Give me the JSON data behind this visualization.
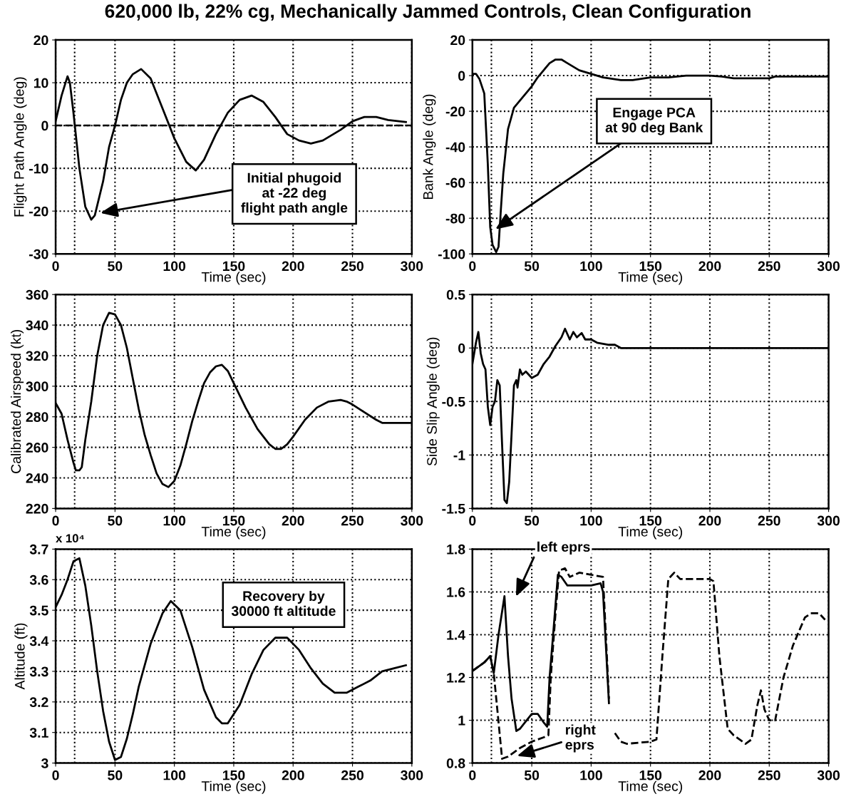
{
  "chart_data": [
    {
      "type": "line",
      "title": "620,000 lb, 22% cg, Mechanically Jammed Controls, Clean Configuration",
      "xlabel": "Time (sec)",
      "ylabel": "Flight Path Angle (deg)",
      "xlim": [
        0,
        300
      ],
      "ylim": [
        -30,
        20
      ],
      "xticks": [
        0,
        50,
        100,
        150,
        200,
        250,
        300
      ],
      "yticks": [
        -30,
        -20,
        -10,
        0,
        10,
        20
      ],
      "grid": true,
      "series": [
        {
          "color": "#000000",
          "line_style": "solid",
          "x": [
            0,
            5,
            10,
            12,
            15,
            20,
            25,
            30,
            33,
            40,
            45,
            50,
            55,
            60,
            65,
            72,
            80,
            90,
            100,
            110,
            118,
            125,
            135,
            145,
            155,
            165,
            175,
            185,
            195,
            205,
            215,
            225,
            240,
            250,
            260,
            270,
            280,
            295
          ],
          "values": [
            1,
            7,
            11.5,
            10,
            3,
            -10,
            -19,
            -22,
            -21,
            -13,
            -5,
            0,
            6,
            10,
            12,
            13.2,
            11,
            4,
            -3,
            -8.5,
            -10.5,
            -8,
            -2,
            3,
            6,
            7,
            5.5,
            2,
            -2,
            -3.5,
            -4.2,
            -3.5,
            -1,
            1,
            2,
            2,
            1.3,
            0.8
          ]
        }
      ],
      "ref_lines": [
        {
          "axis": "y",
          "value": 0,
          "line_style": "dashed",
          "color": "#000000"
        },
        {
          "axis": "x",
          "value": 16,
          "line_style": "dotted",
          "color": "#000000"
        }
      ],
      "annotations": [
        "Initial phugoid\nat -22 deg\nflight path angle"
      ]
    },
    {
      "type": "line",
      "xlabel": "Time (sec)",
      "ylabel": "Bank Angle (deg)",
      "xlim": [
        0,
        300
      ],
      "ylim": [
        -100,
        20
      ],
      "xticks": [
        0,
        50,
        100,
        150,
        200,
        250,
        300
      ],
      "yticks": [
        -100,
        -80,
        -60,
        -40,
        -20,
        0,
        20
      ],
      "grid": true,
      "series": [
        {
          "color": "#000000",
          "line_style": "solid",
          "x": [
            0,
            3,
            6,
            10,
            13,
            15,
            17,
            20,
            22,
            24,
            26,
            30,
            35,
            40,
            45,
            50,
            55,
            60,
            65,
            70,
            75,
            80,
            90,
            100,
            110,
            125,
            135,
            150,
            165,
            180,
            200,
            210,
            220,
            250,
            255,
            300
          ],
          "values": [
            1,
            1,
            -2,
            -10,
            -50,
            -85,
            -95,
            -99,
            -96,
            -75,
            -55,
            -30,
            -18,
            -14,
            -10,
            -6,
            -1,
            3,
            7,
            9,
            9,
            7,
            3,
            1,
            -1,
            -2.5,
            -2.5,
            -1,
            -1,
            0,
            0,
            -0.5,
            -1.5,
            -1.5,
            -0.5,
            -0.5
          ]
        }
      ],
      "ref_lines": [
        {
          "axis": "x",
          "value": 16,
          "line_style": "dotted",
          "color": "#000000"
        }
      ],
      "annotations": [
        "Engage PCA\nat 90 deg Bank"
      ]
    },
    {
      "type": "line",
      "xlabel": "Time (sec)",
      "ylabel": "Calibrated Airspeed (kt)",
      "xlim": [
        0,
        300
      ],
      "ylim": [
        220,
        360
      ],
      "xticks": [
        0,
        50,
        100,
        150,
        200,
        250,
        300
      ],
      "yticks": [
        220,
        240,
        260,
        280,
        300,
        320,
        340,
        360
      ],
      "grid": true,
      "series": [
        {
          "color": "#000000",
          "line_style": "solid",
          "x": [
            0,
            5,
            10,
            15,
            17,
            20,
            22,
            25,
            30,
            35,
            40,
            45,
            50,
            55,
            60,
            65,
            70,
            75,
            80,
            85,
            90,
            95,
            100,
            105,
            110,
            115,
            120,
            125,
            130,
            135,
            140,
            145,
            150,
            160,
            170,
            180,
            185,
            190,
            195,
            200,
            210,
            220,
            230,
            240,
            245,
            250,
            260,
            270,
            275,
            300
          ],
          "values": [
            289,
            282,
            265,
            250,
            245,
            245,
            247,
            265,
            290,
            320,
            340,
            348,
            347,
            340,
            325,
            305,
            285,
            268,
            255,
            243,
            236,
            234,
            238,
            248,
            262,
            277,
            290,
            302,
            309,
            313,
            314,
            310,
            302,
            286,
            272,
            262,
            259,
            259,
            262,
            267,
            278,
            286,
            290,
            291,
            290,
            288,
            283,
            278,
            276,
            276
          ]
        }
      ],
      "ref_lines": [
        {
          "axis": "x",
          "value": 16,
          "line_style": "dotted",
          "color": "#000000"
        }
      ]
    },
    {
      "type": "line",
      "xlabel": "Time (sec)",
      "ylabel": "Side Slip Angle (deg)",
      "xlim": [
        0,
        300
      ],
      "ylim": [
        -1.5,
        0.5
      ],
      "xticks": [
        0,
        50,
        100,
        150,
        200,
        250,
        300
      ],
      "yticks": [
        -1.5,
        -1,
        -0.5,
        0,
        0.5
      ],
      "grid": true,
      "series": [
        {
          "color": "#000000",
          "line_style": "solid",
          "x": [
            0,
            3,
            5,
            7,
            9,
            11,
            13,
            15,
            17,
            19,
            21,
            23,
            25,
            27,
            29,
            31,
            33,
            35,
            37,
            38,
            40,
            42,
            45,
            50,
            55,
            60,
            65,
            70,
            75,
            78,
            82,
            85,
            88,
            92,
            95,
            100,
            105,
            115,
            120,
            125,
            130,
            300
          ],
          "values": [
            -0.15,
            0.05,
            0.15,
            -0.05,
            -0.15,
            -0.2,
            -0.55,
            -0.72,
            -0.55,
            -0.5,
            -0.3,
            -0.35,
            -0.9,
            -1.42,
            -1.45,
            -1.25,
            -0.8,
            -0.35,
            -0.3,
            -0.37,
            -0.2,
            -0.25,
            -0.22,
            -0.28,
            -0.25,
            -0.15,
            -0.08,
            0.02,
            0.1,
            0.18,
            0.08,
            0.15,
            0.1,
            0.14,
            0.08,
            0.08,
            0.05,
            0.03,
            0.03,
            0,
            0,
            0
          ]
        }
      ],
      "ref_lines": [
        {
          "axis": "x",
          "value": 16,
          "line_style": "dotted",
          "color": "#000000"
        }
      ]
    },
    {
      "type": "line",
      "xlabel": "Time (sec)",
      "ylabel": "Altitude (ft)",
      "xlim": [
        0,
        300
      ],
      "ylim": [
        3,
        3.7
      ],
      "xticks": [
        0,
        50,
        100,
        150,
        200,
        250,
        300
      ],
      "yticks": [
        3,
        3.1,
        3.2,
        3.3,
        3.4,
        3.5,
        3.6,
        3.7
      ],
      "grid": true,
      "series": [
        {
          "color": "#000000",
          "line_style": "solid",
          "x": [
            0,
            5,
            10,
            15,
            20,
            25,
            30,
            35,
            40,
            45,
            50,
            55,
            60,
            65,
            70,
            80,
            90,
            97,
            105,
            115,
            125,
            135,
            140,
            145,
            155,
            165,
            175,
            185,
            195,
            205,
            215,
            225,
            235,
            245,
            255,
            265,
            275,
            285,
            295
          ],
          "values": [
            3.51,
            3.55,
            3.6,
            3.66,
            3.67,
            3.58,
            3.45,
            3.3,
            3.17,
            3.07,
            3.01,
            3.02,
            3.08,
            3.16,
            3.25,
            3.39,
            3.49,
            3.53,
            3.5,
            3.38,
            3.24,
            3.15,
            3.13,
            3.13,
            3.19,
            3.29,
            3.37,
            3.41,
            3.41,
            3.37,
            3.31,
            3.26,
            3.23,
            3.23,
            3.25,
            3.27,
            3.3,
            3.31,
            3.32
          ]
        }
      ],
      "ref_lines": [
        {
          "axis": "x",
          "value": 16,
          "line_style": "dotted",
          "color": "#000000"
        }
      ],
      "annotations": [
        "x 10⁴",
        "Recovery by\n30000 ft altitude"
      ]
    },
    {
      "type": "line",
      "xlabel": "Time (sec)",
      "xlim": [
        0,
        300
      ],
      "ylim": [
        0.8,
        1.8
      ],
      "xticks": [
        0,
        50,
        100,
        150,
        200,
        250,
        300
      ],
      "yticks": [
        0.8,
        1,
        1.2,
        1.4,
        1.6,
        1.8
      ],
      "grid": true,
      "series": [
        {
          "color": "#000000",
          "line_style": "solid",
          "x": [
            0,
            10,
            15,
            18,
            22,
            27,
            30,
            33,
            37,
            40,
            50,
            55,
            60,
            63,
            65,
            68,
            72,
            75,
            80,
            90,
            100,
            108,
            110,
            115
          ],
          "values": [
            1.23,
            1.27,
            1.3,
            1.22,
            1.4,
            1.58,
            1.3,
            1.1,
            0.95,
            0.96,
            1.03,
            1.03,
            0.99,
            0.97,
            1.2,
            1.4,
            1.68,
            1.67,
            1.63,
            1.63,
            1.63,
            1.64,
            1.6,
            1.08
          ]
        },
        {
          "color": "#000000",
          "line_style": "dashed",
          "x": [
            0,
            10,
            15,
            18,
            25,
            30,
            40,
            50,
            60,
            64,
            66,
            70,
            73,
            78,
            82,
            90,
            100,
            110,
            115,
            118,
            120,
            125,
            130,
            150,
            155,
            160,
            165,
            170,
            175,
            200,
            203,
            208,
            215,
            220,
            230,
            235,
            240,
            243,
            246,
            250,
            255,
            262,
            270,
            280,
            285,
            292,
            297
          ],
          "values": [
            1.23,
            1.27,
            1.3,
            1.22,
            0.82,
            0.83,
            0.87,
            0.9,
            0.92,
            0.93,
            1.2,
            1.5,
            1.7,
            1.71,
            1.67,
            1.69,
            1.68,
            1.67,
            1.1,
            null,
            0.94,
            0.9,
            0.89,
            0.9,
            0.91,
            1.3,
            1.66,
            1.69,
            1.66,
            1.66,
            1.65,
            1.3,
            0.96,
            0.93,
            0.89,
            0.91,
            1.07,
            1.14,
            1.05,
            1.0,
            1.0,
            1.2,
            1.35,
            1.48,
            1.5,
            1.5,
            1.47
          ]
        }
      ],
      "ref_lines": [
        {
          "axis": "x",
          "value": 16,
          "line_style": "dotted",
          "color": "#000000"
        }
      ],
      "annotations": [
        "left eprs",
        "right\neprs"
      ]
    }
  ]
}
